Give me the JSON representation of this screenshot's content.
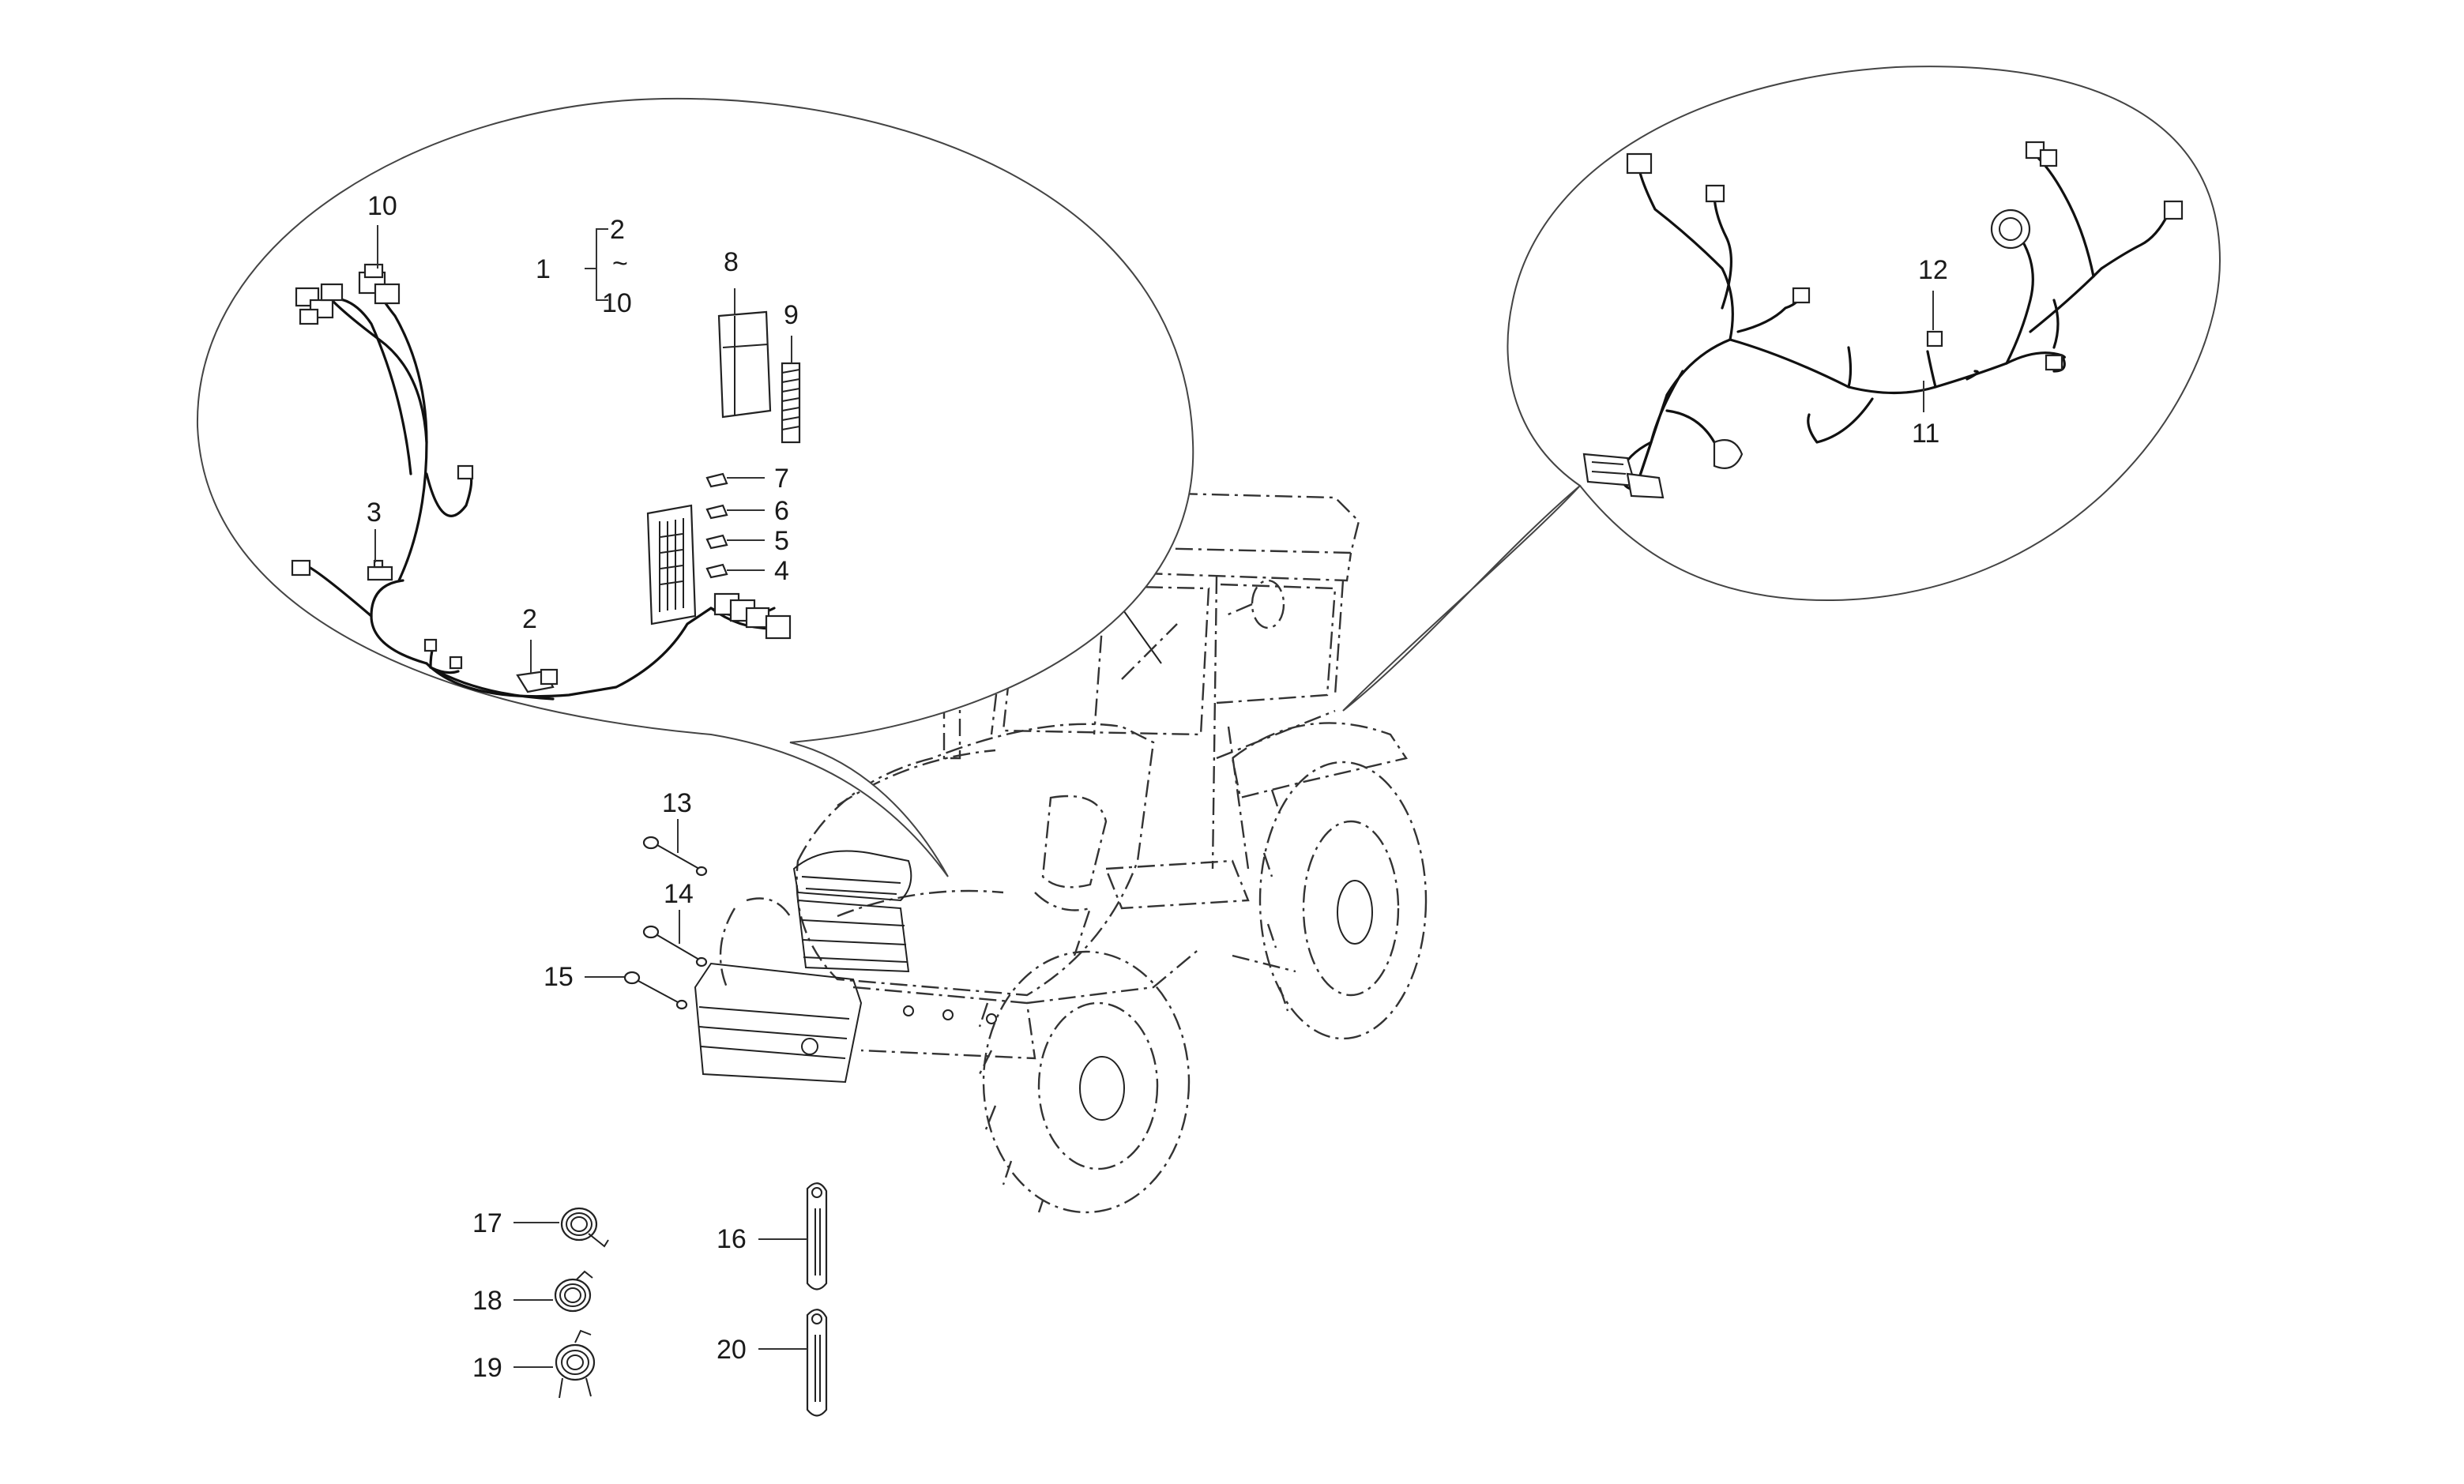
{
  "callouts": {
    "c1": "1",
    "c1_range_start": "2",
    "c1_range_sep": "~",
    "c1_range_end": "10",
    "c2": "2",
    "c3": "3",
    "c4": "4",
    "c5": "5",
    "c6": "6",
    "c7": "7",
    "c8": "8",
    "c9": "9",
    "c10": "10",
    "c11": "11",
    "c12": "12",
    "c13": "13",
    "c14": "14",
    "c15": "15",
    "c16": "16",
    "c17": "17",
    "c18": "18",
    "c19": "19",
    "c20": "20"
  },
  "icons": {
    "tractor": "tractor-illustration",
    "front_harness": "front-wiring-harness",
    "rear_harness": "rear-wiring-harness",
    "bolts": "bolt-icon",
    "clips": "hose-clip-icon",
    "brackets": "cable-bracket-icon"
  },
  "colors": {
    "line": "#222222",
    "background": "#ffffff"
  }
}
